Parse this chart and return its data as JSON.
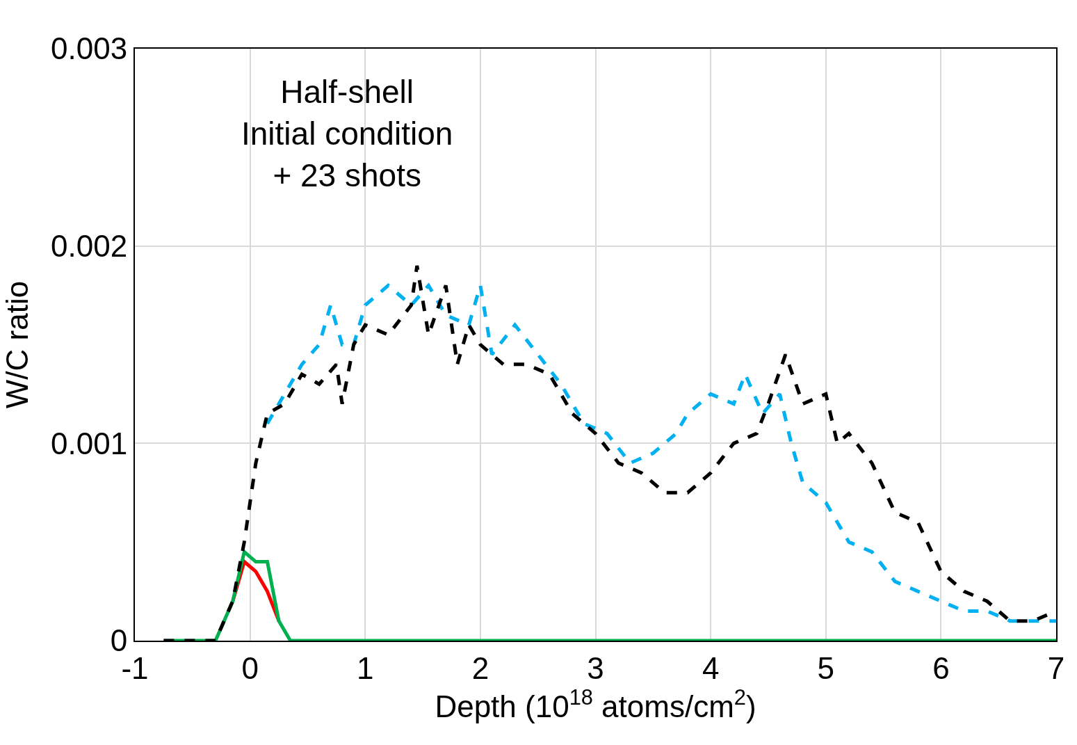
{
  "chart_data": {
    "type": "line",
    "xlabel": "Depth (10$^{18}$ atoms/cm$^{2}$)",
    "ylabel": "W/C ratio",
    "annotations": [
      "Half-shell\nInitial condition\n+ 23 shots"
    ],
    "xlim": [
      -1,
      7
    ],
    "xticks": [
      -1,
      0,
      1,
      2,
      3,
      4,
      5,
      6,
      7
    ],
    "ylim": [
      0,
      0.003
    ],
    "yticks": [
      0,
      0.001,
      0.002,
      0.003
    ],
    "grid": true,
    "series": [
      {
        "color": "#ff0000",
        "line_style": "solid",
        "x": [
          -0.15,
          -0.05,
          0.05,
          0.15,
          0.25
        ],
        "values": [
          0.0002,
          0.0004,
          0.00035,
          0.00025,
          0.0001
        ]
      },
      {
        "color": "#00b050",
        "line_style": "solid",
        "x": [
          -0.75,
          -0.5,
          -0.3,
          -0.15,
          -0.05,
          0.05,
          0.15,
          0.25,
          0.35,
          0.5,
          1,
          2,
          3,
          4,
          5,
          6,
          7
        ],
        "values": [
          0,
          0,
          0,
          0.0002,
          0.00045,
          0.0004,
          0.0004,
          0.0001,
          0,
          0,
          0,
          0,
          0,
          0,
          0,
          0,
          0
        ]
      },
      {
        "color": "#00b0f0",
        "line_style": "dashed",
        "x": [
          0.15,
          0.3,
          0.45,
          0.6,
          0.7,
          0.8,
          0.9,
          1.0,
          1.2,
          1.4,
          1.55,
          1.7,
          1.9,
          2.0,
          2.1,
          2.3,
          2.5,
          2.7,
          2.9,
          3.1,
          3.3,
          3.5,
          3.7,
          3.8,
          4.0,
          4.2,
          4.3,
          4.45,
          4.6,
          4.7,
          4.8,
          5.0,
          5.2,
          5.4,
          5.6,
          5.8,
          6.0,
          6.2,
          6.4,
          6.6,
          6.8,
          7.0
        ],
        "values": [
          0.0011,
          0.00125,
          0.0014,
          0.0015,
          0.0017,
          0.0015,
          0.0015,
          0.0017,
          0.0018,
          0.0017,
          0.0018,
          0.00165,
          0.0016,
          0.0018,
          0.00145,
          0.0016,
          0.00145,
          0.0013,
          0.0011,
          0.00105,
          0.0009,
          0.00095,
          0.00105,
          0.00115,
          0.00125,
          0.0012,
          0.00135,
          0.00115,
          0.00125,
          0.001,
          0.0008,
          0.0007,
          0.0005,
          0.00045,
          0.0003,
          0.00025,
          0.0002,
          0.00015,
          0.00015,
          0.0001,
          0.0001,
          0.0001
        ]
      },
      {
        "color": "#000000",
        "line_style": "dashed",
        "x": [
          -0.75,
          -0.5,
          -0.3,
          -0.15,
          -0.05,
          0.05,
          0.15,
          0.3,
          0.45,
          0.6,
          0.75,
          0.8,
          0.9,
          1.0,
          1.2,
          1.4,
          1.45,
          1.55,
          1.7,
          1.8,
          1.9,
          2.0,
          2.2,
          2.4,
          2.6,
          2.8,
          3.0,
          3.2,
          3.4,
          3.6,
          3.8,
          4.0,
          4.2,
          4.4,
          4.5,
          4.65,
          4.8,
          5.0,
          5.1,
          5.2,
          5.4,
          5.6,
          5.8,
          6.0,
          6.2,
          6.4,
          6.6,
          6.8,
          7.0
        ],
        "values": [
          0,
          0,
          0,
          0.0002,
          0.0005,
          0.0009,
          0.00115,
          0.0012,
          0.00135,
          0.0013,
          0.0014,
          0.0012,
          0.0015,
          0.0016,
          0.00155,
          0.0017,
          0.0019,
          0.00155,
          0.0018,
          0.0014,
          0.0016,
          0.0015,
          0.0014,
          0.0014,
          0.00135,
          0.00115,
          0.00105,
          0.0009,
          0.00085,
          0.00075,
          0.00075,
          0.00085,
          0.001,
          0.00105,
          0.0012,
          0.00145,
          0.0012,
          0.00125,
          0.001,
          0.00105,
          0.0009,
          0.00065,
          0.0006,
          0.00035,
          0.00025,
          0.0002,
          0.0001,
          0.0001,
          0.00015
        ]
      }
    ]
  }
}
